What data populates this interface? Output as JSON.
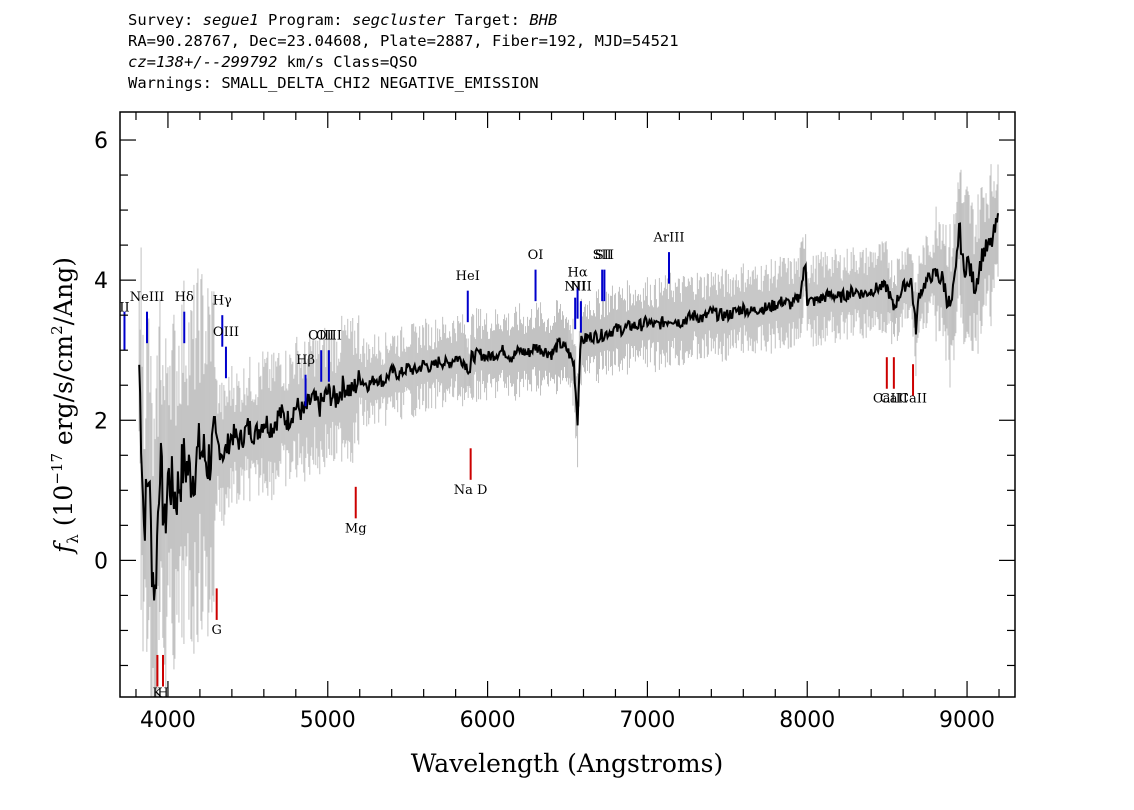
{
  "header": {
    "line1": {
      "survey_label": "Survey: ",
      "survey": "segue1",
      "program_label": " Program: ",
      "program": "segcluster",
      "target_label": " Target: ",
      "target": "BHB"
    },
    "line2": "RA=90.28767, Dec=23.04608, Plate=2887, Fiber=192, MJD=54521",
    "line3": {
      "cz": "cz=138+/--299792",
      "rest": " km/s Class=QSO"
    },
    "line4": "Warnings: SMALL_DELTA_CHI2 NEGATIVE_EMISSION"
  },
  "colors": {
    "flux": "#000000",
    "error": "#c0c0c0",
    "emission": "#0000cc",
    "absorption": "#cc0000"
  },
  "chart_data": {
    "type": "line",
    "xlabel": "Wavelength (Angstroms)",
    "ylabel": "f_λ (10^-17 erg/s/cm^2/Ang)",
    "ylabel_parts": {
      "f": "f",
      "sub": "λ",
      "open": " (10",
      "exp1": "−17",
      "mid": " erg/s/cm",
      "exp2": "2",
      "close": "/Ang)"
    },
    "xlim": [
      3700,
      9300
    ],
    "ylim": [
      -1.95,
      6.4
    ],
    "x_ticks": [
      4000,
      5000,
      6000,
      7000,
      8000,
      9000
    ],
    "x_tick_labels": [
      "4000",
      "5000",
      "6000",
      "7000",
      "8000",
      "9000"
    ],
    "y_ticks": [
      0,
      2,
      4,
      6
    ],
    "y_tick_labels": [
      "0",
      "2",
      "4",
      "6"
    ],
    "series": [
      {
        "role": "flux",
        "x": [
          3820,
          3850,
          3880,
          3900,
          3920,
          3950,
          3980,
          4000,
          4050,
          4100,
          4150,
          4200,
          4250,
          4300,
          4350,
          4400,
          4450,
          4500,
          4550,
          4600,
          4650,
          4700,
          4750,
          4800,
          4850,
          4900,
          4950,
          5000,
          5050,
          5100,
          5150,
          5200,
          5250,
          5300,
          5350,
          5400,
          5450,
          5500,
          5550,
          5600,
          5650,
          5700,
          5750,
          5800,
          5850,
          5890,
          5900,
          5950,
          6000,
          6050,
          6100,
          6150,
          6200,
          6250,
          6300,
          6350,
          6400,
          6450,
          6500,
          6540,
          6563,
          6580,
          6600,
          6650,
          6700,
          6750,
          6800,
          6850,
          6900,
          6950,
          7000,
          7050,
          7100,
          7150,
          7200,
          7250,
          7300,
          7350,
          7400,
          7450,
          7500,
          7550,
          7600,
          7650,
          7700,
          7750,
          7800,
          7850,
          7900,
          7950,
          7990,
          8000,
          8050,
          8100,
          8150,
          8200,
          8250,
          8300,
          8350,
          8400,
          8450,
          8500,
          8540,
          8600,
          8650,
          8680,
          8700,
          8750,
          8800,
          8850,
          8880,
          8900,
          8930,
          8950,
          8980,
          9000,
          9050,
          9100,
          9150,
          9200
        ],
        "y": [
          2.8,
          0.5,
          1.3,
          0.0,
          -0.5,
          1.5,
          0.4,
          1.2,
          0.9,
          1.4,
          1.2,
          1.6,
          1.4,
          1.7,
          1.5,
          1.8,
          1.7,
          1.9,
          1.8,
          2.0,
          1.9,
          2.1,
          2.0,
          2.2,
          2.1,
          2.3,
          2.2,
          2.4,
          2.3,
          2.5,
          2.4,
          2.6,
          2.5,
          2.6,
          2.55,
          2.7,
          2.65,
          2.75,
          2.7,
          2.8,
          2.75,
          2.85,
          2.8,
          2.9,
          2.85,
          2.7,
          2.9,
          2.95,
          2.9,
          2.95,
          3.0,
          2.9,
          3.0,
          2.95,
          3.05,
          3.0,
          2.95,
          3.1,
          3.0,
          2.8,
          2.0,
          3.1,
          3.15,
          3.2,
          3.2,
          3.25,
          3.3,
          3.3,
          3.35,
          3.35,
          3.4,
          3.35,
          3.4,
          3.45,
          3.4,
          3.45,
          3.5,
          3.45,
          3.55,
          3.5,
          3.5,
          3.55,
          3.6,
          3.55,
          3.6,
          3.6,
          3.65,
          3.7,
          3.65,
          3.75,
          4.25,
          3.7,
          3.7,
          3.75,
          3.8,
          3.75,
          3.8,
          3.85,
          3.8,
          3.85,
          3.9,
          3.9,
          3.6,
          3.9,
          4.0,
          3.3,
          3.8,
          4.0,
          4.1,
          4.0,
          3.7,
          3.6,
          4.1,
          4.8,
          4.1,
          4.3,
          3.9,
          4.4,
          4.5,
          4.9
        ]
      }
    ],
    "line_markers": [
      {
        "label": "II",
        "x": 3728,
        "type": "emission",
        "y_low": 3.0,
        "y_high": 3.55,
        "label_y": 3.55
      },
      {
        "label": "NeIII",
        "x": 3869,
        "type": "emission",
        "y_low": 3.1,
        "y_high": 3.55,
        "label_y": 3.7
      },
      {
        "label": "Hδ",
        "x": 4102,
        "type": "emission",
        "y_low": 3.1,
        "y_high": 3.55,
        "label_y": 3.7
      },
      {
        "label": "Hγ",
        "x": 4340,
        "type": "emission",
        "y_low": 3.05,
        "y_high": 3.5,
        "label_y": 3.65
      },
      {
        "label": "OIII",
        "x": 4363,
        "type": "emission",
        "y_low": 2.6,
        "y_high": 3.05,
        "label_y": 3.2
      },
      {
        "label": "Hβ",
        "x": 4861,
        "type": "emission",
        "y_low": 2.2,
        "y_high": 2.65,
        "label_y": 2.8
      },
      {
        "label": "OIII",
        "x": 4959,
        "type": "emission",
        "y_low": 2.55,
        "y_high": 3.0,
        "label_y": 3.15
      },
      {
        "label": "OIII",
        "x": 5007,
        "type": "emission",
        "y_low": 2.55,
        "y_high": 3.0,
        "label_y": 3.15
      },
      {
        "label": "HeI",
        "x": 5876,
        "type": "emission",
        "y_low": 3.4,
        "y_high": 3.85,
        "label_y": 4.0
      },
      {
        "label": "OI",
        "x": 6300,
        "type": "emission",
        "y_low": 3.7,
        "y_high": 4.15,
        "label_y": 4.3
      },
      {
        "label": "NII",
        "x": 6548,
        "type": "emission",
        "y_low": 3.3,
        "y_high": 3.75,
        "label_y": 3.85
      },
      {
        "label": "Hα",
        "x": 6563,
        "type": "emission",
        "y_low": 3.45,
        "y_high": 3.9,
        "label_y": 4.05
      },
      {
        "label": "NII",
        "x": 6584,
        "type": "emission",
        "y_low": 3.25,
        "y_high": 3.7,
        "label_y": 3.85
      },
      {
        "label": "SII",
        "x": 6717,
        "type": "emission",
        "y_low": 3.7,
        "y_high": 4.15,
        "label_y": 4.3
      },
      {
        "label": "SII",
        "x": 6731,
        "type": "emission",
        "y_low": 3.7,
        "y_high": 4.15,
        "label_y": 4.3
      },
      {
        "label": "ArIII",
        "x": 7135,
        "type": "emission",
        "y_low": 3.95,
        "y_high": 4.4,
        "label_y": 4.55
      },
      {
        "label": "K",
        "x": 3934,
        "type": "absorption",
        "y_low": -1.8,
        "y_high": -1.35,
        "label_y": -1.95
      },
      {
        "label": "H",
        "x": 3969,
        "type": "absorption",
        "y_low": -1.8,
        "y_high": -1.35,
        "label_y": -1.95
      },
      {
        "label": "G",
        "x": 4305,
        "type": "absorption",
        "y_low": -0.85,
        "y_high": -0.4,
        "label_y": -1.05
      },
      {
        "label": "Mg",
        "x": 5175,
        "type": "absorption",
        "y_low": 0.6,
        "y_high": 1.05,
        "label_y": 0.4
      },
      {
        "label": "Na D",
        "x": 5894,
        "type": "absorption",
        "y_low": 1.15,
        "y_high": 1.6,
        "label_y": 0.95
      },
      {
        "label": "CaII",
        "x": 8498,
        "type": "absorption",
        "y_low": 2.45,
        "y_high": 2.9,
        "label_y": 2.25
      },
      {
        "label": "CaII",
        "x": 8542,
        "type": "absorption",
        "y_low": 2.45,
        "y_high": 2.9,
        "label_y": 2.25
      },
      {
        "label": "CaII",
        "x": 8662,
        "type": "absorption",
        "y_low": 2.35,
        "y_high": 2.8,
        "label_y": 2.25
      }
    ]
  }
}
